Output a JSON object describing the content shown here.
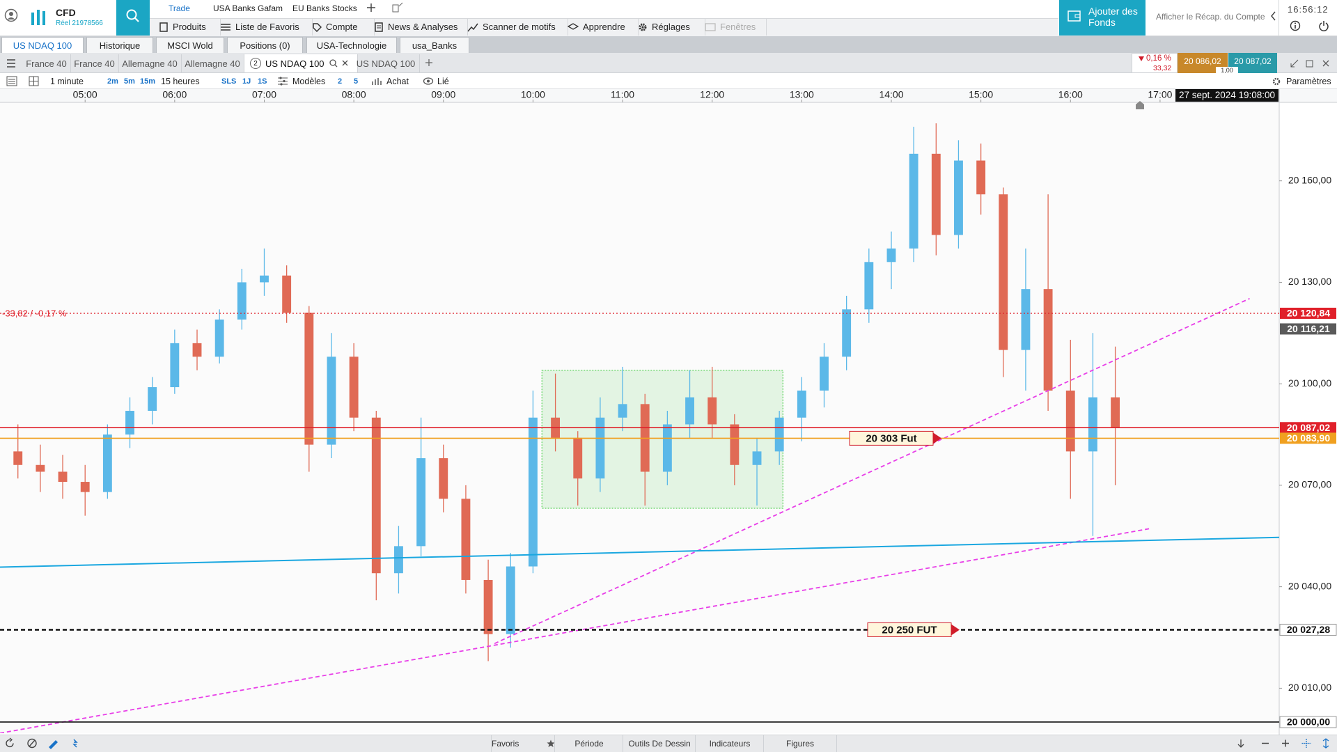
{
  "header": {
    "brand": "CFD",
    "account": "Réel 21978566",
    "top_links": [
      "Trade",
      "USA Banks Gafam",
      "EU Banks Stocks"
    ],
    "menu": [
      "Produits",
      "Liste de Favoris",
      "Compte",
      "News & Analyses",
      "Scanner de motifs",
      "Apprendre",
      "Réglages",
      "Fenêtres"
    ],
    "funds_button": "Ajouter des Fonds",
    "account_summary": "Afficher le Récap. du Compte",
    "clock": "16:56:12"
  },
  "workspaces": {
    "tabs": [
      "US NDAQ 100",
      "Historique",
      "MSCI Wold",
      "Positions (0)",
      "USA-Technologie",
      "usa_Banks"
    ],
    "active": 0
  },
  "chart_tabs": {
    "tabs": [
      "France 40",
      "France 40",
      "Allemagne 40",
      "Allemagne 40",
      "US NDAQ 100",
      "US NDAQ 100"
    ],
    "active": 4,
    "active_badge": "2"
  },
  "quote": {
    "change_pct": "0,16 %",
    "change": "33,32",
    "sell": "20 086,02",
    "buy": "20 087,02",
    "spread": "1,00"
  },
  "toolbar": {
    "interval": "1 minute",
    "quick": [
      "2m",
      "5m",
      "15m"
    ],
    "period": "15 heures",
    "modes": [
      "SLS",
      "1J",
      "1S"
    ],
    "templates": "Modèles",
    "counts": [
      "2",
      "5"
    ],
    "order": "Achat",
    "link": "Lié",
    "settings": "Paramètres"
  },
  "footer": {
    "tabs": [
      "Favoris",
      "Période",
      "Outils De Dessin",
      "Indicateurs",
      "Figures"
    ]
  },
  "chart_data": {
    "type": "candlestick",
    "x": [
      4.25,
      4.5,
      4.75,
      5,
      5.25,
      5.5,
      5.75,
      6,
      6.25,
      6.5,
      6.75,
      7,
      7.25,
      7.5,
      7.75,
      8,
      8.25,
      8.5,
      8.75,
      9,
      9.25,
      9.5,
      9.75,
      10,
      10.25,
      10.5,
      10.75,
      11,
      11.25,
      11.5,
      11.75,
      12,
      12.25,
      12.5,
      12.75,
      13,
      13.25,
      13.5,
      13.75,
      14,
      14.25,
      14.5,
      14.75,
      15,
      15.25,
      15.5,
      15.75,
      16,
      16.25,
      16.5
    ],
    "open": [
      20080,
      20076,
      20074,
      20071,
      20068,
      20085,
      20092,
      20099,
      20112,
      20108,
      20119,
      20130,
      20132,
      20121,
      20082,
      20108,
      20090,
      20044,
      20052,
      20078,
      20066,
      20042,
      20026,
      20046,
      20090,
      20084,
      20072,
      20090,
      20094,
      20074,
      20088,
      20096,
      20088,
      20076,
      20080,
      20090,
      20098,
      20108,
      20122,
      20136,
      20140,
      20168,
      20144,
      20166,
      20156,
      20110,
      20128,
      20098,
      20080,
      20096
    ],
    "high": [
      20088,
      20082,
      20079,
      20076,
      20088,
      20096,
      20102,
      20116,
      20116,
      20122,
      20134,
      20140,
      20135,
      20123,
      20115,
      20112,
      20092,
      20058,
      20090,
      20082,
      20070,
      20048,
      20050,
      20098,
      20103,
      20086,
      20096,
      20105,
      20097,
      20092,
      20104,
      20105,
      20091,
      20084,
      20092,
      20102,
      20112,
      20126,
      20140,
      20145,
      20176,
      20177,
      20172,
      20171,
      20158,
      20140,
      20156,
      20113,
      20115,
      20111
    ],
    "low": [
      20072,
      20068,
      20066,
      20061,
      20066,
      20081,
      20088,
      20097,
      20104,
      20106,
      20116,
      20126,
      20118,
      20074,
      20078,
      20086,
      20036,
      20038,
      20049,
      20062,
      20038,
      20018,
      20022,
      20044,
      20080,
      20064,
      20068,
      20086,
      20064,
      20070,
      20084,
      20084,
      20070,
      20064,
      20076,
      20083,
      20093,
      20104,
      20118,
      20128,
      20136,
      20138,
      20140,
      20150,
      20102,
      20098,
      20092,
      20066,
      20055,
      20070
    ],
    "close": [
      20076,
      20074,
      20071,
      20068,
      20085,
      20092,
      20099,
      20112,
      20108,
      20119,
      20130,
      20132,
      20121,
      20082,
      20108,
      20090,
      20044,
      20052,
      20078,
      20066,
      20042,
      20026,
      20046,
      20090,
      20084,
      20072,
      20090,
      20094,
      20074,
      20088,
      20096,
      20088,
      20076,
      20080,
      20090,
      20098,
      20108,
      20122,
      20136,
      20140,
      20168,
      20144,
      20166,
      20156,
      20110,
      20128,
      20098,
      20080,
      20096,
      20087.02
    ],
    "up_color": "#5bb8e8",
    "down_color": "#e06a55",
    "xlim": [
      4.05,
      18.33
    ],
    "xticks": [
      {
        "value": 5,
        "label": "05:00"
      },
      {
        "value": 6,
        "label": "06:00"
      },
      {
        "value": 7,
        "label": "07:00"
      },
      {
        "value": 8,
        "label": "08:00"
      },
      {
        "value": 9,
        "label": "09:00"
      },
      {
        "value": 10,
        "label": "10:00"
      },
      {
        "value": 11,
        "label": "11:00"
      },
      {
        "value": 12,
        "label": "12:00"
      },
      {
        "value": 13,
        "label": "13:00"
      },
      {
        "value": 14,
        "label": "14:00"
      },
      {
        "value": 15,
        "label": "15:00"
      },
      {
        "value": 16,
        "label": "16:00"
      },
      {
        "value": 17,
        "label": "17:00"
      }
    ],
    "ylim": [
      19996.7,
      20183.2
    ],
    "yticks": [
      {
        "value": 20010,
        "label": "20 010,00"
      },
      {
        "value": 20040,
        "label": "20 040,00"
      },
      {
        "value": 20070,
        "label": "20 070,00"
      },
      {
        "value": 20100,
        "label": "20 100,00"
      },
      {
        "value": 20130,
        "label": "20 130,00"
      },
      {
        "value": 20160,
        "label": "20 160,00"
      }
    ],
    "levels": [
      {
        "value": 20120.84,
        "label": "20 120,84",
        "color": "#e0202a",
        "style": "dotted",
        "label_fill": true,
        "note": "-33,82 / -0,17 %"
      },
      {
        "value": 20116.21,
        "label": "20 116,21",
        "color": "#5a5a5a",
        "style": "none",
        "label_fill": true
      },
      {
        "value": 20087.02,
        "label": "20 087,02",
        "color": "#e0202a",
        "style": "solid",
        "label_fill": true
      },
      {
        "value": 20083.9,
        "label": "20 083,90",
        "color": "#f0a020",
        "style": "solid",
        "label_fill": true,
        "annotation": "20 303 Fut"
      },
      {
        "value": 20027.28,
        "label": "20 027,28",
        "color": "#111111",
        "style": "dashed",
        "label_fill": false,
        "annotation": "20 250 FUT"
      },
      {
        "value": 20000,
        "label": "20 000,00",
        "color": "#111111",
        "style": "solid",
        "label_fill": false
      }
    ],
    "trendlines": [
      {
        "points": [
          [
            4.05,
            19996.7
          ],
          [
            16.89,
            20057.2
          ]
        ],
        "color": "#e83ee8",
        "style": "dashed"
      },
      {
        "points": [
          [
            9.57,
            20023.2
          ],
          [
            18.0,
            20125.2
          ]
        ],
        "color": "#e83ee8",
        "style": "dashed"
      },
      {
        "points": [
          [
            4.05,
            20045.8
          ],
          [
            18.33,
            20054.6
          ]
        ],
        "color": "#1aa7e0",
        "style": "solid"
      }
    ],
    "zone": {
      "x": [
        10.1,
        12.79
      ],
      "y": [
        20063.2,
        20104.0
      ],
      "color": "#5fd35f"
    },
    "timestamp": "27 sept. 2024 19:08:00"
  }
}
